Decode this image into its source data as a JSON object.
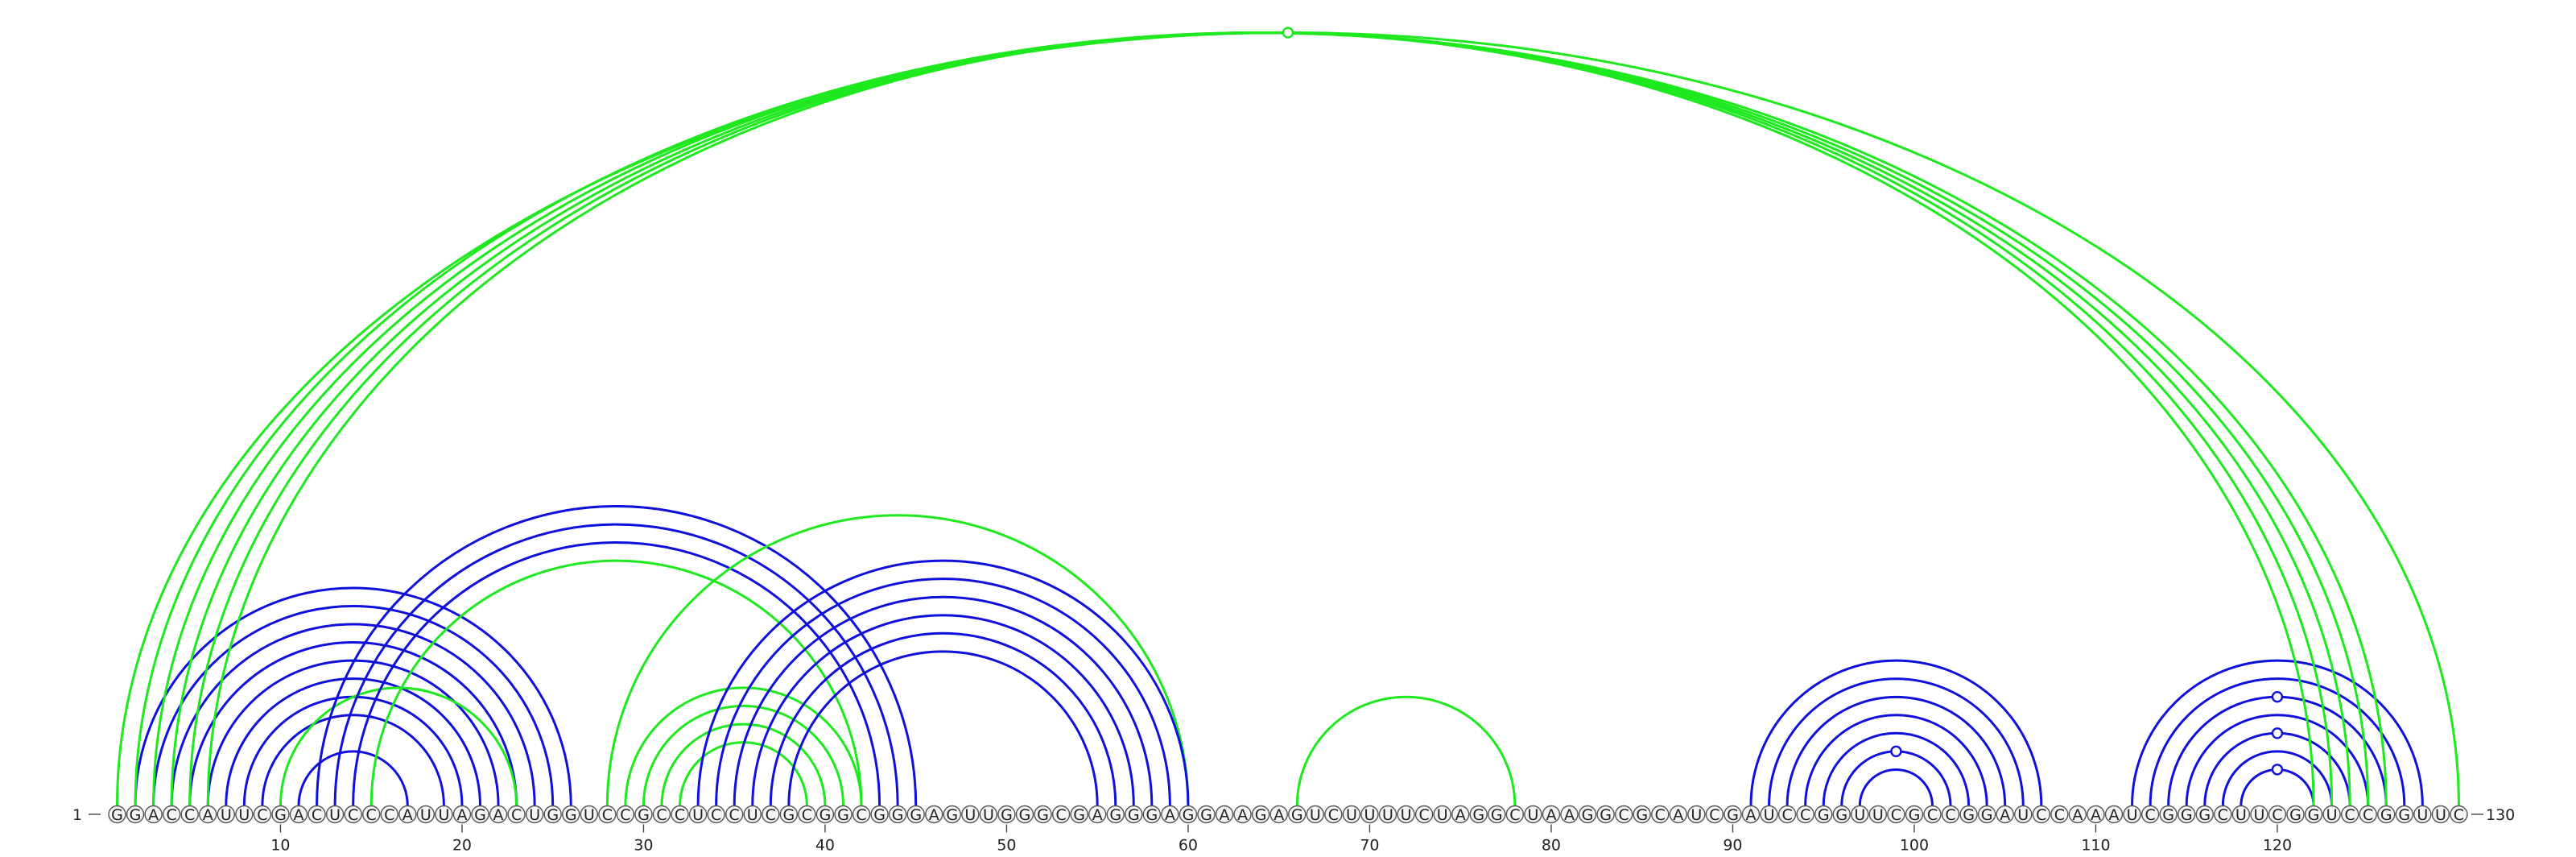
{
  "sequence": "GGACCAUUCGACUCCCAUUAGACUGGUCCGCCUCCUCGCGGCGGGAGUUGGGCGAGGGAGGAAGAGUCUUUUCUAGGCUAAGGCGCAUCGAUCCGGUUCGCCGGAUCCAAAUCGGGCUUCGGUCCGGUUC",
  "start_label": "1",
  "end_label": "130",
  "tick_positions": [
    10,
    20,
    30,
    40,
    50,
    60,
    70,
    80,
    90,
    100,
    110,
    120
  ],
  "colors": {
    "blue": "#1010dd",
    "green": "#1ee81e"
  },
  "arcs": [
    {
      "i": 2,
      "j": 26,
      "color": "blue"
    },
    {
      "i": 3,
      "j": 25,
      "color": "blue"
    },
    {
      "i": 4,
      "j": 24,
      "color": "blue"
    },
    {
      "i": 5,
      "j": 23,
      "color": "blue"
    },
    {
      "i": 6,
      "j": 22,
      "color": "blue"
    },
    {
      "i": 7,
      "j": 21,
      "color": "blue"
    },
    {
      "i": 8,
      "j": 20,
      "color": "blue"
    },
    {
      "i": 9,
      "j": 19,
      "color": "blue"
    },
    {
      "i": 10,
      "j": 23,
      "color": "green"
    },
    {
      "i": 11,
      "j": 17,
      "color": "blue"
    },
    {
      "i": 12,
      "j": 45,
      "color": "blue"
    },
    {
      "i": 13,
      "j": 44,
      "color": "blue"
    },
    {
      "i": 14,
      "j": 43,
      "color": "blue"
    },
    {
      "i": 15,
      "j": 42,
      "color": "green"
    },
    {
      "i": 28,
      "j": 60,
      "color": "green"
    },
    {
      "i": 29,
      "j": 42,
      "color": "green"
    },
    {
      "i": 30,
      "j": 41,
      "color": "green"
    },
    {
      "i": 31,
      "j": 40,
      "color": "green"
    },
    {
      "i": 32,
      "j": 39,
      "color": "green"
    },
    {
      "i": 33,
      "j": 60,
      "color": "blue"
    },
    {
      "i": 34,
      "j": 59,
      "color": "blue"
    },
    {
      "i": 35,
      "j": 58,
      "color": "blue"
    },
    {
      "i": 36,
      "j": 57,
      "color": "blue"
    },
    {
      "i": 37,
      "j": 56,
      "color": "blue"
    },
    {
      "i": 38,
      "j": 55,
      "color": "blue"
    },
    {
      "i": 66,
      "j": 78,
      "color": "green"
    },
    {
      "i": 91,
      "j": 107,
      "color": "blue"
    },
    {
      "i": 92,
      "j": 106,
      "color": "blue"
    },
    {
      "i": 93,
      "j": 105,
      "color": "blue"
    },
    {
      "i": 94,
      "j": 104,
      "color": "blue"
    },
    {
      "i": 95,
      "j": 103,
      "color": "blue"
    },
    {
      "i": 96,
      "j": 102,
      "color": "blue"
    },
    {
      "i": 97,
      "j": 101,
      "color": "blue"
    },
    {
      "i": 112,
      "j": 128,
      "color": "blue"
    },
    {
      "i": 113,
      "j": 127,
      "color": "blue"
    },
    {
      "i": 114,
      "j": 126,
      "color": "blue"
    },
    {
      "i": 115,
      "j": 125,
      "color": "blue"
    },
    {
      "i": 116,
      "j": 124,
      "color": "blue"
    },
    {
      "i": 117,
      "j": 123,
      "color": "blue"
    },
    {
      "i": 118,
      "j": 122,
      "color": "blue"
    },
    {
      "i": 1,
      "j": 130,
      "color": "green"
    },
    {
      "i": 2,
      "j": 126,
      "color": "green"
    },
    {
      "i": 3,
      "j": 125,
      "color": "green"
    },
    {
      "i": 4,
      "j": 124,
      "color": "green"
    },
    {
      "i": 5,
      "j": 123,
      "color": "green"
    },
    {
      "i": 6,
      "j": 122,
      "color": "green"
    }
  ],
  "markers": [
    {
      "color": "green",
      "i": 1,
      "j": 130
    },
    {
      "color": "blue",
      "i": 96,
      "j": 102
    },
    {
      "color": "blue",
      "i": 114,
      "j": 126
    },
    {
      "color": "blue",
      "i": 116,
      "j": 124
    },
    {
      "color": "blue",
      "i": 118,
      "j": 122
    }
  ]
}
